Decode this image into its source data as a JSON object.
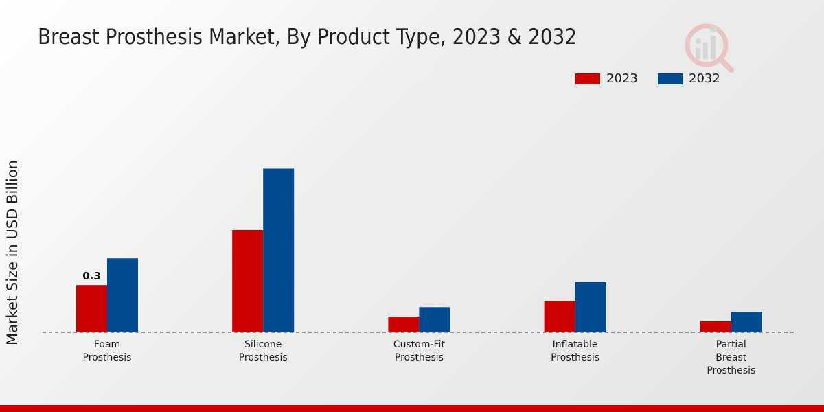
{
  "chart_data": {
    "type": "bar",
    "title": "Breast Prosthesis Market, By Product Type, 2023 & 2032",
    "xlabel": "",
    "ylabel": "Market Size in USD Billion",
    "categories": [
      [
        "Foam",
        "Prosthesis"
      ],
      [
        "Silicone",
        "Prosthesis"
      ],
      [
        "Custom-Fit",
        "Prosthesis"
      ],
      [
        "Inflatable",
        "Prosthesis"
      ],
      [
        "Partial",
        "Breast",
        "Prosthesis"
      ]
    ],
    "series": [
      {
        "name": "2023",
        "color": "#cc0000",
        "values": [
          0.3,
          0.65,
          0.1,
          0.2,
          0.07
        ]
      },
      {
        "name": "2032",
        "color": "#004a8f",
        "values": [
          0.47,
          1.04,
          0.16,
          0.32,
          0.13
        ]
      }
    ],
    "data_labels": [
      {
        "series": 0,
        "index": 0,
        "text": "0.3"
      }
    ],
    "ylim": [
      0,
      1.5
    ],
    "grid": false,
    "legend_position": "top-right"
  }
}
